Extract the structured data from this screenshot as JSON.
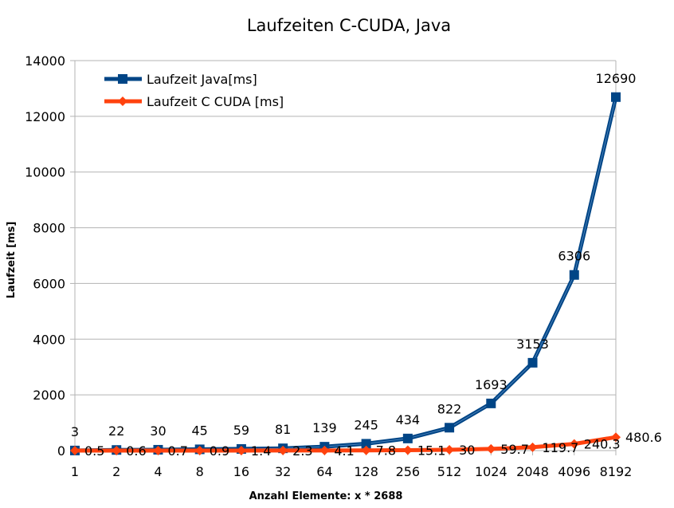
{
  "chart_data": {
    "type": "line",
    "title": "Laufzeiten C-CUDA, Java",
    "xlabel": "Anzahl Elemente: x * 2688",
    "ylabel": "Laufzeit [ms]",
    "categories": [
      "1",
      "2",
      "4",
      "8",
      "16",
      "32",
      "64",
      "128",
      "256",
      "512",
      "1024",
      "2048",
      "4096",
      "8192"
    ],
    "ylim": [
      0,
      14000
    ],
    "yticks": [
      0,
      2000,
      4000,
      6000,
      8000,
      10000,
      12000,
      14000
    ],
    "grid": true,
    "legend_position": "top-left",
    "series": [
      {
        "name": "Laufzeit Java[ms]",
        "color": "#004586",
        "marker": "square",
        "values": [
          3,
          22,
          30,
          45,
          59,
          81,
          139,
          245,
          434,
          822,
          1693,
          3153,
          6306,
          12690
        ],
        "labels": [
          "3",
          "22",
          "30",
          "45",
          "59",
          "81",
          "139",
          "245",
          "434",
          "822",
          "1693",
          "3153",
          "6306",
          "12690"
        ]
      },
      {
        "name": "Laufzeit C CUDA [ms]",
        "color": "#ff420e",
        "marker": "diamond",
        "values": [
          0.5,
          0.6,
          0.7,
          0.9,
          1.4,
          2.3,
          4.1,
          7.8,
          15.1,
          30,
          59.7,
          119.7,
          240.3,
          480.6
        ],
        "labels": [
          "0.5",
          "0.6",
          "0.7",
          "0.9",
          "1.4",
          "2.3",
          "4.1",
          "7.8",
          "15.1",
          "30",
          "59.7",
          "119.7",
          "240.3",
          "480.6"
        ]
      }
    ]
  }
}
